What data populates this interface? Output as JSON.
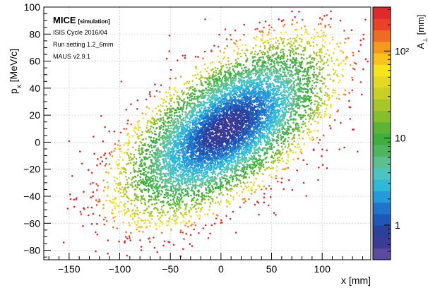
{
  "chart_data": {
    "type": "scatter",
    "title": "",
    "xlabel": "x [mm]",
    "ylabel": "p_x [MeV/c]",
    "ylabel_main": "p",
    "ylabel_sub": "x",
    "ylabel_rest": " [MeV/c]",
    "xlim": [
      -175,
      148
    ],
    "ylim": [
      -87,
      100
    ],
    "x_ticks": [
      -150,
      -100,
      -50,
      0,
      50,
      100
    ],
    "x_tick_labels": [
      "−150",
      "−100",
      "−50",
      "0",
      "50",
      "100"
    ],
    "y_ticks": [
      -80,
      -60,
      -40,
      -20,
      0,
      20,
      40,
      60,
      80,
      100
    ],
    "y_tick_labels": [
      "−80",
      "−60",
      "−40",
      "−20",
      "0",
      "20",
      "40",
      "60",
      "80",
      "100"
    ],
    "grid": true,
    "annotations": {
      "experiment": "MICE",
      "tag": "[simulation]",
      "cycle": "ISIS Cycle 2016/04",
      "setting": "Run setting 1.2_6mm",
      "software": "MAUS v2.9.1"
    },
    "colorbar": {
      "label": "A",
      "label_sub": "⊥",
      "label_units": " [mm]",
      "scale": "log",
      "range": [
        0.4,
        320
      ],
      "tick_values": [
        1,
        10,
        100
      ],
      "tick_labels": [
        "1",
        "10",
        "10²"
      ],
      "colors": [
        "#5b4a9e",
        "#3b3b95",
        "#2c3f9b",
        "#1f57b8",
        "#1f74c9",
        "#2899d8",
        "#2fb8d9",
        "#4cc4c0",
        "#5dbf8e",
        "#4cb75e",
        "#3fae3b",
        "#5ab436",
        "#86bf2e",
        "#a7c729",
        "#c8cf25",
        "#e5d820",
        "#f7e51c",
        "#f9c21c",
        "#f59a1c",
        "#ee6b22",
        "#e94227",
        "#e02a2a"
      ]
    },
    "distribution": {
      "description_note": "",
      "core_center": [
        5,
        10
      ],
      "halo_spread_x": 48,
      "halo_spread_px": 30,
      "correlation": 0.62
    }
  }
}
